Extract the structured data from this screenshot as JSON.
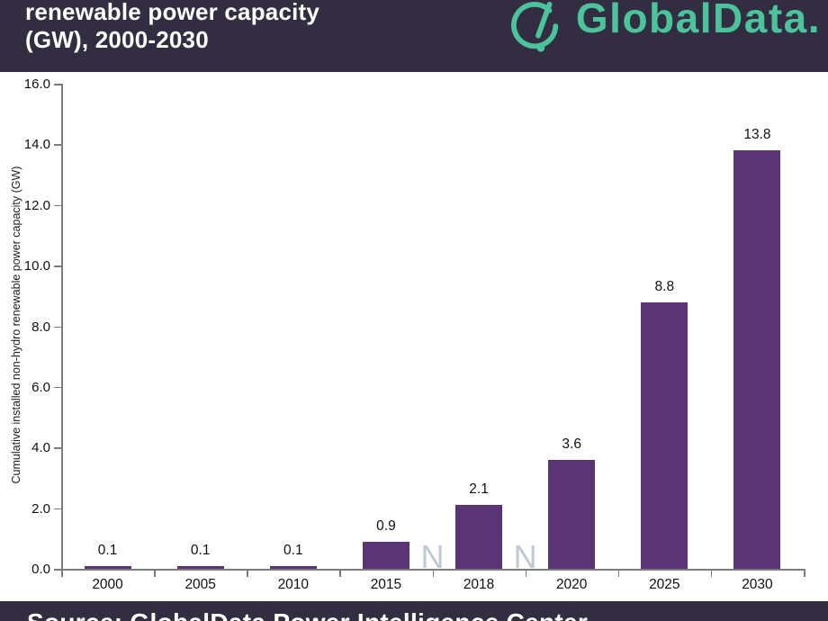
{
  "header": {
    "title_line1": "renewable power capacity",
    "title_line2": "(GW), 2000-2030",
    "brand": "GlobalData.",
    "colors": {
      "background": "#322d41",
      "brand_green": "#4bc39b"
    }
  },
  "chart_data": {
    "type": "bar",
    "title": "renewable power capacity (GW), 2000-2030",
    "categories": [
      "2000",
      "2005",
      "2010",
      "2015",
      "2018",
      "2020",
      "2025",
      "2030"
    ],
    "values": [
      0.1,
      0.1,
      0.1,
      0.9,
      2.1,
      3.6,
      8.8,
      13.8
    ],
    "value_labels": [
      "0.1",
      "0.1",
      "0.1",
      "0.9",
      "2.1",
      "3.6",
      "8.8",
      "13.8"
    ],
    "xlabel": "",
    "ylabel": "Cumulative installed non-hydro renewable power capacity (GW)",
    "ylim": [
      0,
      16
    ],
    "ytick_step": 2,
    "ytick_labels": [
      "0.0",
      "2.0",
      "4.0",
      "6.0",
      "8.0",
      "10.0",
      "12.0",
      "14.0",
      "16.0"
    ],
    "bar_color": "#5a3474",
    "grid": false,
    "legend": "none"
  },
  "watermarks": {
    "glyph": "N",
    "boundary_indices": [
      4,
      5
    ]
  },
  "footer": {
    "source_text": "Source: GlobalData Power Intelligence Center"
  }
}
